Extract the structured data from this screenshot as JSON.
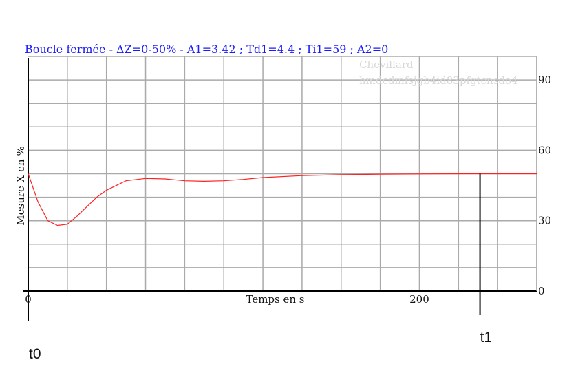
{
  "chart_data": {
    "type": "line",
    "title": "Boucle fermée - ΔZ=0-50% - A1=3.42 ; Td1=4.4 ; Ti1=59 ; A2=0",
    "watermark": [
      "Chevillard",
      "hmdcdmfsjgb4id83pfgtcnsdo4"
    ],
    "xlabel": "Temps en s",
    "ylabel": "Mesure X en %",
    "xlim": [
      0,
      260
    ],
    "ylim": [
      0,
      100
    ],
    "x_ticks": [
      0,
      200
    ],
    "y_ticks": [
      0,
      30,
      60,
      90
    ],
    "grid": true,
    "line_color": "#ff2020",
    "series": [
      {
        "x": [
          0,
          5,
          10,
          15,
          20,
          25,
          30,
          35,
          40,
          50,
          60,
          70,
          80,
          90,
          100,
          110,
          120,
          140,
          160,
          180,
          200,
          230,
          260
        ],
        "values": [
          50,
          38,
          30,
          28,
          28.5,
          32,
          36,
          40,
          43,
          47,
          48,
          47.8,
          47,
          46.8,
          47,
          47.6,
          48.4,
          49.2,
          49.6,
          49.8,
          49.9,
          50,
          50
        ]
      }
    ],
    "markers": [
      {
        "label": "t0",
        "x": 0
      },
      {
        "label": "t1",
        "x": 231
      }
    ]
  }
}
